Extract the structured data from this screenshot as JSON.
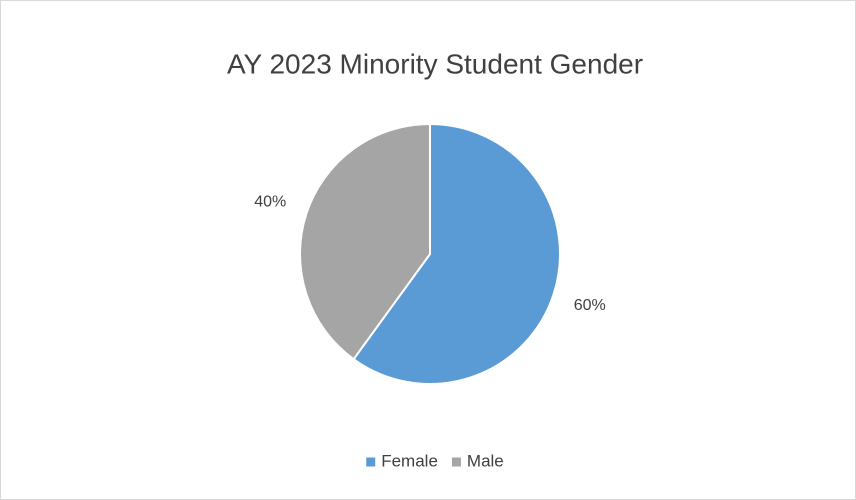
{
  "chart_data": {
    "type": "pie",
    "title": "AY 2023 Minority Student Gender",
    "categories": [
      "Female",
      "Male"
    ],
    "values": [
      60,
      40
    ],
    "value_labels": [
      "60%",
      "40%"
    ],
    "colors": [
      "#5b9bd5",
      "#a5a5a5"
    ],
    "legend": "bottom"
  }
}
